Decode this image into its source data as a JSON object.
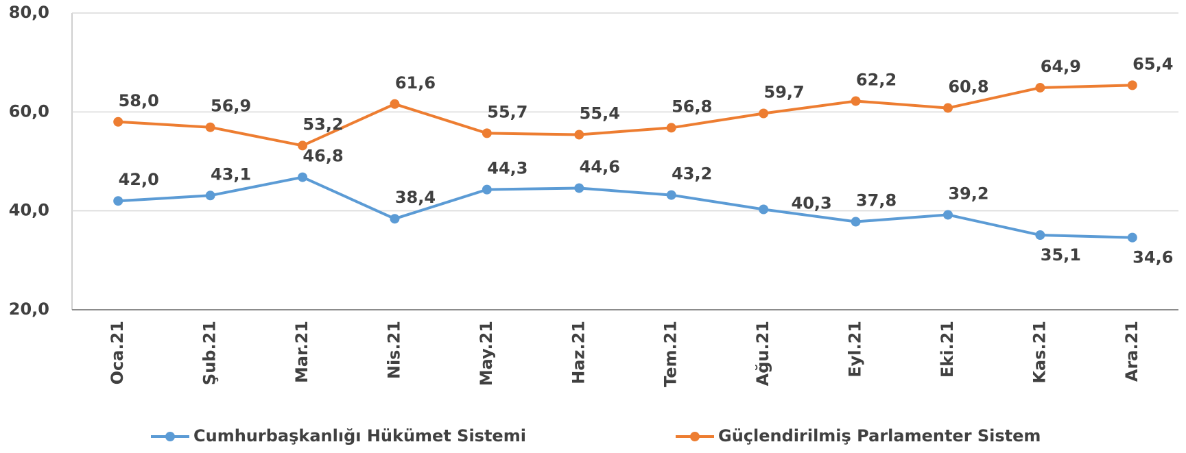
{
  "chart_data": {
    "type": "line",
    "categories": [
      "Oca.21",
      "Şub.21",
      "Mar.21",
      "Nis.21",
      "May.21",
      "Haz.21",
      "Tem.21",
      "Ağu.21",
      "Eyl.21",
      "Eki.21",
      "Kas.21",
      "Ara.21"
    ],
    "series": [
      {
        "name": "Cumhurbaşkanlığı Hükümet Sistemi",
        "color": "#5b9bd5",
        "values": [
          42.0,
          43.1,
          46.8,
          38.4,
          44.3,
          44.6,
          43.2,
          40.3,
          37.8,
          39.2,
          35.1,
          34.6
        ],
        "value_labels": [
          "42,0",
          "43,1",
          "46,8",
          "38,4",
          "44,3",
          "44,6",
          "43,2",
          "40,3",
          "37,8",
          "39,2",
          "35,1",
          "34,6"
        ]
      },
      {
        "name": "Güçlendirilmiş Parlamenter Sistem",
        "color": "#ed7d31",
        "values": [
          58.0,
          56.9,
          53.2,
          61.6,
          55.7,
          55.4,
          56.8,
          59.7,
          62.2,
          60.8,
          64.9,
          65.4
        ],
        "value_labels": [
          "58,0",
          "56,9",
          "53,2",
          "61,6",
          "55,7",
          "55,4",
          "56,8",
          "59,7",
          "62,2",
          "60,8",
          "64,9",
          "65,4"
        ]
      }
    ],
    "ylim": [
      20,
      80
    ],
    "yticks": [
      {
        "value": 20,
        "label": "20,0"
      },
      {
        "value": 40,
        "label": "40,0"
      },
      {
        "value": 60,
        "label": "60,0"
      },
      {
        "value": 80,
        "label": "80,0"
      }
    ],
    "grid": true,
    "legend": "bottom"
  }
}
